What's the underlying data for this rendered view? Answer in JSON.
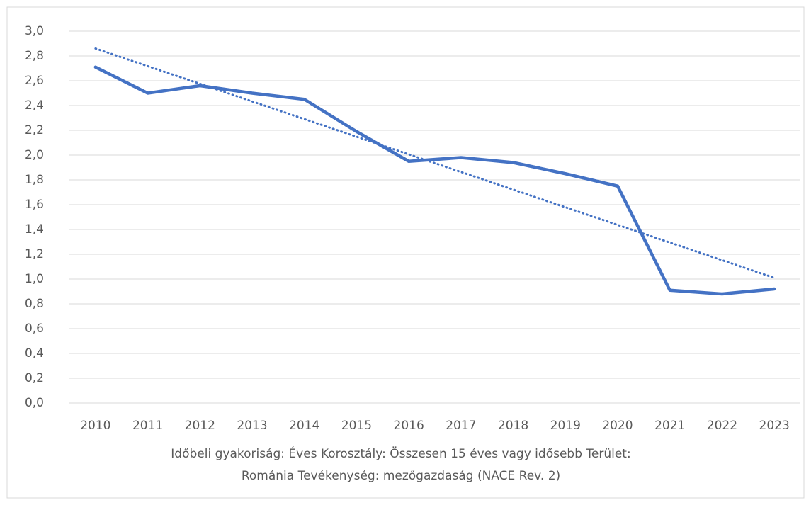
{
  "chart_data": {
    "type": "line",
    "categories": [
      "2010",
      "2011",
      "2012",
      "2013",
      "2014",
      "2015",
      "2016",
      "2017",
      "2018",
      "2019",
      "2020",
      "2021",
      "2022",
      "2023"
    ],
    "series": [
      {
        "color": "#4472c4",
        "values": [
          2.71,
          2.5,
          2.56,
          2.5,
          2.45,
          2.19,
          1.95,
          1.98,
          1.94,
          1.85,
          1.75,
          0.91,
          0.88,
          0.92
        ]
      }
    ],
    "trendline": {
      "color": "#4472c4",
      "style": "dotted",
      "values": [
        2.86,
        1.01
      ]
    },
    "ylim": [
      0,
      3.0
    ],
    "yticks": [
      {
        "value": 0,
        "label": "0,0"
      },
      {
        "value": 0.2,
        "label": "0,2"
      },
      {
        "value": 0.4,
        "label": "0,4"
      },
      {
        "value": 0.6,
        "label": "0,6"
      },
      {
        "value": 0.8,
        "label": "0,8"
      },
      {
        "value": 1.0,
        "label": "1,0"
      },
      {
        "value": 1.2,
        "label": "1,2"
      },
      {
        "value": 1.4,
        "label": "1,4"
      },
      {
        "value": 1.6,
        "label": "1,6"
      },
      {
        "value": 1.8,
        "label": "1,8"
      },
      {
        "value": 2.0,
        "label": "2,0"
      },
      {
        "value": 2.2,
        "label": "2,2"
      },
      {
        "value": 2.4,
        "label": "2,4"
      },
      {
        "value": 2.6,
        "label": "2,6"
      },
      {
        "value": 2.8,
        "label": "2,8"
      },
      {
        "value": 3.0,
        "label": "3,0"
      }
    ],
    "grid": true,
    "caption": "Időbeli gyakoriság: Éves  Korosztály: Összesen 15 éves vagy idősebb Terület: Románia  Tevékenység: mezőgazdaság (NACE Rev. 2)"
  }
}
